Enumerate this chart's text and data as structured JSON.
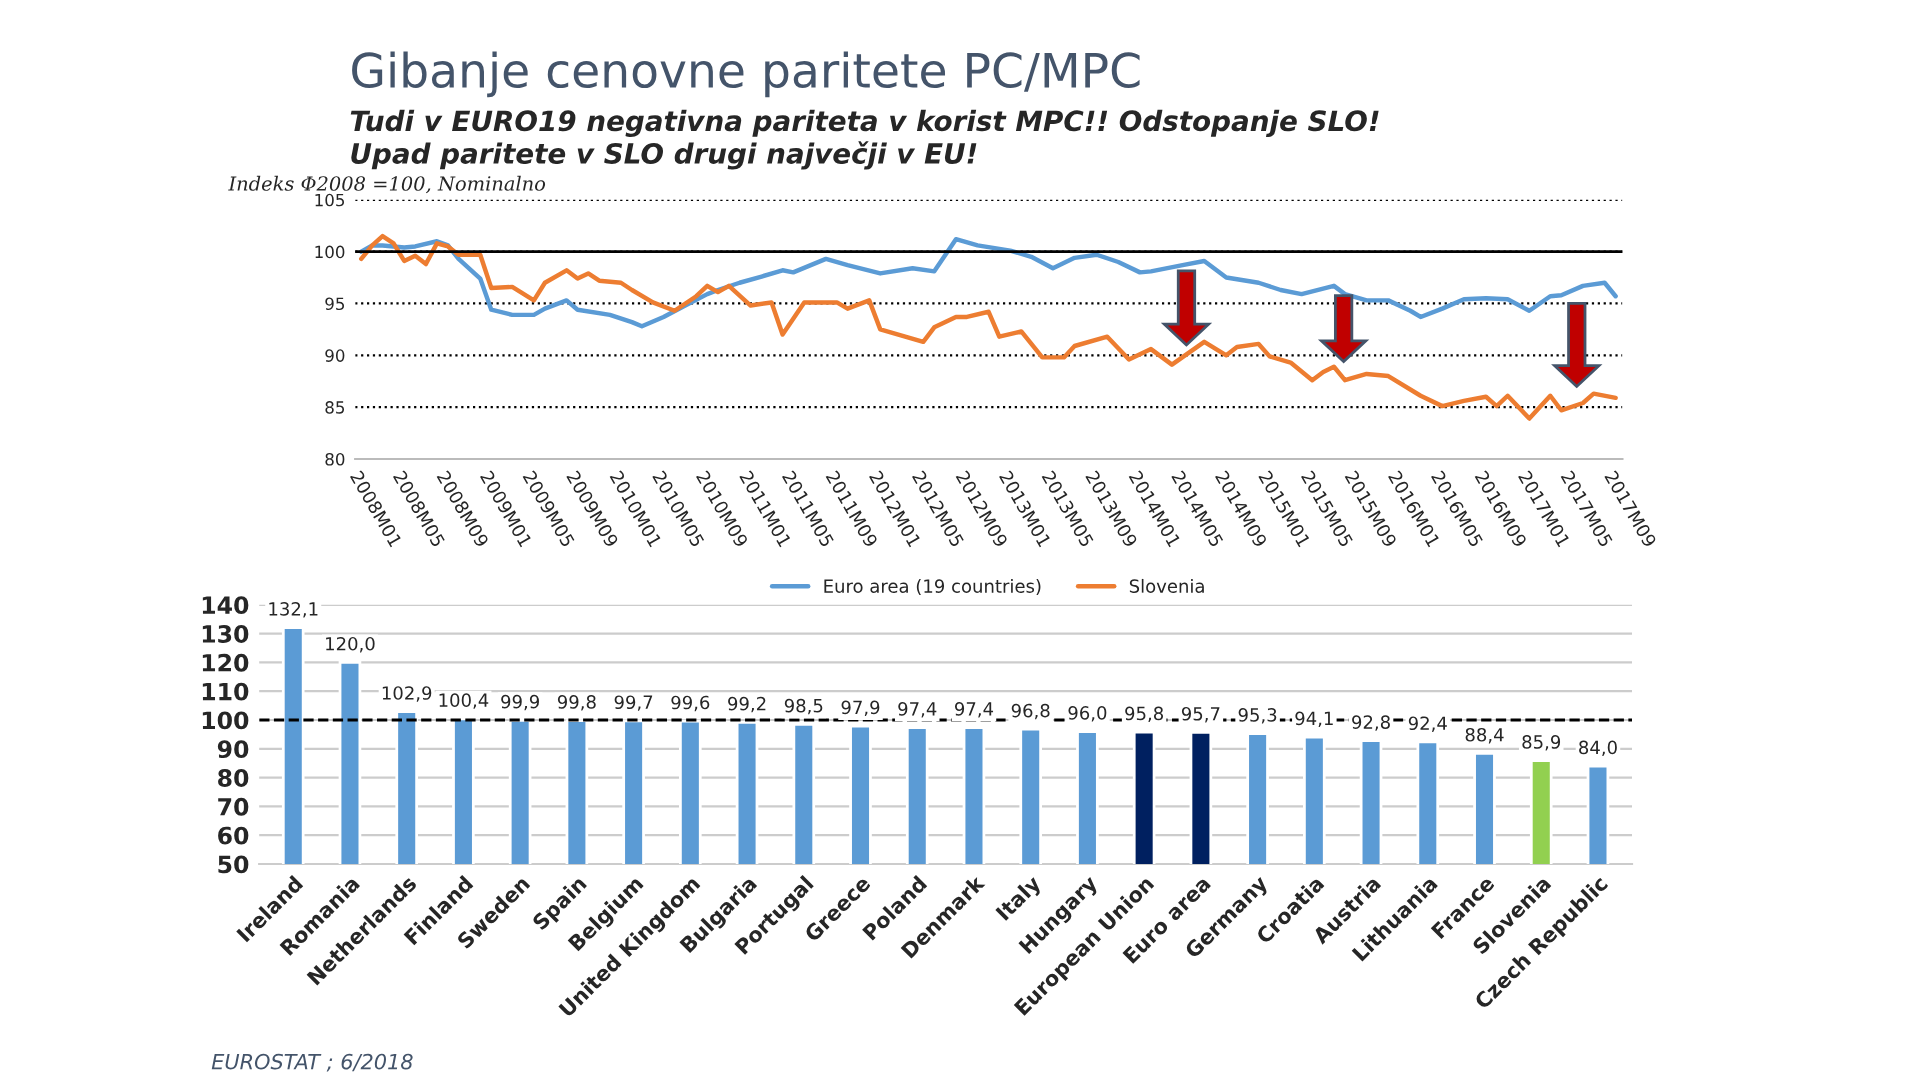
{
  "chart_data": [
    {
      "type": "line",
      "title": "Gibanje cenovne paritete PC/MPC",
      "subtitle": "Tudi v EURO19 negativna pariteta v korist MPC!! Odstopanje SLO!\nUpad paritete v SLO drugi največji v EU!",
      "ylabel": "Indeks Φ2008 =100, Nominalno",
      "series": [
        {
          "name": "Euro area (19 countries)",
          "color": "#5b9bd5",
          "x": [
            "2008-01",
            "2008-02",
            "2008-03",
            "2008-05",
            "2008-06",
            "2008-08",
            "2008-09",
            "2008-10",
            "2008-12",
            "2009-01",
            "2009-03",
            "2009-05",
            "2009-06",
            "2009-08",
            "2009-09",
            "2009-12",
            "2010-02",
            "2010-03",
            "2010-05",
            "2010-07",
            "2010-09",
            "2010-10",
            "2010-12",
            "2011-02",
            "2011-04",
            "2011-05",
            "2011-08",
            "2011-10",
            "2012-01",
            "2012-04",
            "2012-06",
            "2012-08",
            "2012-10",
            "2013-01",
            "2013-03",
            "2013-05",
            "2013-07",
            "2013-09",
            "2013-11",
            "2014-01",
            "2014-02",
            "2014-05",
            "2014-07",
            "2014-09",
            "2014-12",
            "2015-02",
            "2015-04",
            "2015-07",
            "2015-08",
            "2015-10",
            "2015-12",
            "2016-02",
            "2016-03",
            "2016-05",
            "2016-07",
            "2016-09",
            "2016-11",
            "2017-01",
            "2017-03",
            "2017-04",
            "2017-06",
            "2017-08",
            "2017-09"
          ],
          "values": [
            100.0,
            100.6,
            100.6,
            100.4,
            100.5,
            101.0,
            100.6,
            99.3,
            97.4,
            94.4,
            93.9,
            93.9,
            94.5,
            95.3,
            94.4,
            93.9,
            93.2,
            92.8,
            93.7,
            94.8,
            95.9,
            96.3,
            97.0,
            97.6,
            98.2,
            98.0,
            99.3,
            98.7,
            97.9,
            98.4,
            98.1,
            101.2,
            100.6,
            100.1,
            99.5,
            98.4,
            99.4,
            99.7,
            99.0,
            98.0,
            98.1,
            98.7,
            99.1,
            97.5,
            97.0,
            96.3,
            95.9,
            96.7,
            95.9,
            95.3,
            95.3,
            94.3,
            93.7,
            94.5,
            95.4,
            95.5,
            95.4,
            94.3,
            95.7,
            95.8,
            96.7,
            97.0,
            95.7
          ]
        },
        {
          "name": "Slovenia",
          "color": "#ed7d31",
          "x": [
            "2008-01",
            "2008-02",
            "2008-03",
            "2008-04",
            "2008-05",
            "2008-06",
            "2008-07",
            "2008-08",
            "2008-09",
            "2008-10",
            "2008-12",
            "2009-01",
            "2009-03",
            "2009-05",
            "2009-06",
            "2009-08",
            "2009-09",
            "2009-10",
            "2009-11",
            "2010-01",
            "2010-02",
            "2010-04",
            "2010-06",
            "2010-08",
            "2010-09",
            "2010-10",
            "2010-11",
            "2011-01",
            "2011-03",
            "2011-04",
            "2011-06",
            "2011-09",
            "2011-10",
            "2011-12",
            "2012-01",
            "2012-05",
            "2012-06",
            "2012-08",
            "2012-09",
            "2012-11",
            "2012-12",
            "2013-02",
            "2013-04",
            "2013-06",
            "2013-07",
            "2013-10",
            "2013-12",
            "2014-02",
            "2014-04",
            "2014-07",
            "2014-09",
            "2014-10",
            "2014-12",
            "2015-01",
            "2015-03",
            "2015-05",
            "2015-06",
            "2015-07",
            "2015-08",
            "2015-10",
            "2015-12",
            "2016-03",
            "2016-05",
            "2016-07",
            "2016-09",
            "2016-10",
            "2016-11",
            "2017-01",
            "2017-03",
            "2017-04",
            "2017-06",
            "2017-07",
            "2017-09"
          ],
          "values": [
            99.3,
            100.6,
            101.5,
            100.8,
            99.1,
            99.6,
            98.8,
            100.8,
            100.5,
            99.7,
            99.7,
            96.5,
            96.6,
            95.3,
            97.0,
            98.2,
            97.4,
            97.9,
            97.2,
            97.0,
            96.3,
            95.1,
            94.3,
            95.7,
            96.7,
            96.1,
            96.7,
            94.8,
            95.1,
            92.0,
            95.1,
            95.1,
            94.5,
            95.3,
            92.5,
            91.3,
            92.7,
            93.7,
            93.7,
            94.2,
            91.8,
            92.3,
            89.8,
            89.8,
            90.9,
            91.8,
            89.6,
            90.6,
            89.1,
            91.3,
            90.0,
            90.8,
            91.1,
            89.9,
            89.3,
            87.6,
            88.4,
            88.9,
            87.6,
            88.2,
            88.0,
            86.1,
            85.1,
            85.6,
            86.0,
            85.1,
            86.1,
            83.9,
            86.1,
            84.7,
            85.4,
            86.3,
            85.9
          ]
        }
      ],
      "xlim": [
        "2007-12-15",
        "2017-09-20"
      ],
      "xticks": [
        {
          "value": "2008-01",
          "label": "2008M01"
        },
        {
          "value": "2008-05",
          "label": "2008M05"
        },
        {
          "value": "2008-09",
          "label": "2008M09"
        },
        {
          "value": "2009-01",
          "label": "2009M01"
        },
        {
          "value": "2009-05",
          "label": "2009M05"
        },
        {
          "value": "2009-09",
          "label": "2009M09"
        },
        {
          "value": "2010-01",
          "label": "2010M01"
        },
        {
          "value": "2010-05",
          "label": "2010M05"
        },
        {
          "value": "2010-09",
          "label": "2010M09"
        },
        {
          "value": "2011-01",
          "label": "2011M01"
        },
        {
          "value": "2011-05",
          "label": "2011M05"
        },
        {
          "value": "2011-09",
          "label": "2011M09"
        },
        {
          "value": "2012-01",
          "label": "2012M01"
        },
        {
          "value": "2012-05",
          "label": "2012M05"
        },
        {
          "value": "2012-09",
          "label": "2012M09"
        },
        {
          "value": "2013-01",
          "label": "2013M01"
        },
        {
          "value": "2013-05",
          "label": "2013M05"
        },
        {
          "value": "2013-09",
          "label": "2013M09"
        },
        {
          "value": "2014-01",
          "label": "2014M01"
        },
        {
          "value": "2014-05",
          "label": "2014M05"
        },
        {
          "value": "2014-09",
          "label": "2014M09"
        },
        {
          "value": "2015-01",
          "label": "2015M01"
        },
        {
          "value": "2015-05",
          "label": "2015M05"
        },
        {
          "value": "2015-09",
          "label": "2015M09"
        },
        {
          "value": "2016-01",
          "label": "2016M01"
        },
        {
          "value": "2016-05",
          "label": "2016M05"
        },
        {
          "value": "2016-09",
          "label": "2016M09"
        },
        {
          "value": "2017-01",
          "label": "2017M01"
        },
        {
          "value": "2017-05",
          "label": "2017M05"
        },
        {
          "value": "2017-09",
          "label": "2017M09"
        }
      ],
      "ylim": [
        80,
        105
      ],
      "yticks": [
        80,
        85,
        90,
        95,
        100,
        105
      ],
      "grid": "y",
      "legend": "bottom",
      "line_style": "solid",
      "marker": "none",
      "ref_lines": [
        {
          "axis": "y",
          "value": 100,
          "color": "#000000",
          "line_style": "solid"
        }
      ]
    },
    {
      "type": "bar",
      "categories": [
        "Ireland",
        "Romania",
        "Netherlands",
        "Finland",
        "Sweden",
        "Spain",
        "Belgium",
        "United Kingdom",
        "Bulgaria",
        "Portugal",
        "Greece",
        "Poland",
        "Denmark",
        "Italy",
        "Hungary",
        "European Union",
        "Euro area",
        "Germany",
        "Croatia",
        "Austria",
        "Lithuania",
        "France",
        "Slovenia",
        "Czech Republic"
      ],
      "values": [
        132.1,
        120.0,
        102.9,
        100.4,
        99.9,
        99.8,
        99.7,
        99.6,
        99.2,
        98.5,
        97.9,
        97.4,
        97.4,
        96.8,
        96.0,
        95.8,
        95.7,
        95.3,
        94.1,
        92.8,
        92.4,
        88.4,
        85.9,
        84.0
      ],
      "value_labels": [
        "132,1",
        "120,0",
        "102,9",
        "100,4",
        "99,9",
        "99,8",
        "99,7",
        "99,6",
        "99,2",
        "98,5",
        "97,9",
        "97,4",
        "97,4",
        "96,8",
        "96,0",
        "95,8",
        "95,7",
        "95,3",
        "94,1",
        "92,8",
        "92,4",
        "88,4",
        "85,9",
        "84,0"
      ],
      "colors": [
        "#5b9bd5",
        "#5b9bd5",
        "#5b9bd5",
        "#5b9bd5",
        "#5b9bd5",
        "#5b9bd5",
        "#5b9bd5",
        "#5b9bd5",
        "#5b9bd5",
        "#5b9bd5",
        "#5b9bd5",
        "#5b9bd5",
        "#5b9bd5",
        "#5b9bd5",
        "#5b9bd5",
        "#002060",
        "#002060",
        "#5b9bd5",
        "#5b9bd5",
        "#5b9bd5",
        "#5b9bd5",
        "#5b9bd5",
        "#92d050",
        "#5b9bd5"
      ],
      "ylim": [
        50,
        140
      ],
      "yticks": [
        50,
        60,
        70,
        80,
        90,
        100,
        110,
        120,
        130,
        140
      ],
      "grid": "y",
      "ref_lines": [
        {
          "axis": "y",
          "value": 100,
          "color": "#000000",
          "line_style": "dashed"
        }
      ],
      "annotations": [
        "EUROSTAT ; 6/2018"
      ]
    }
  ]
}
